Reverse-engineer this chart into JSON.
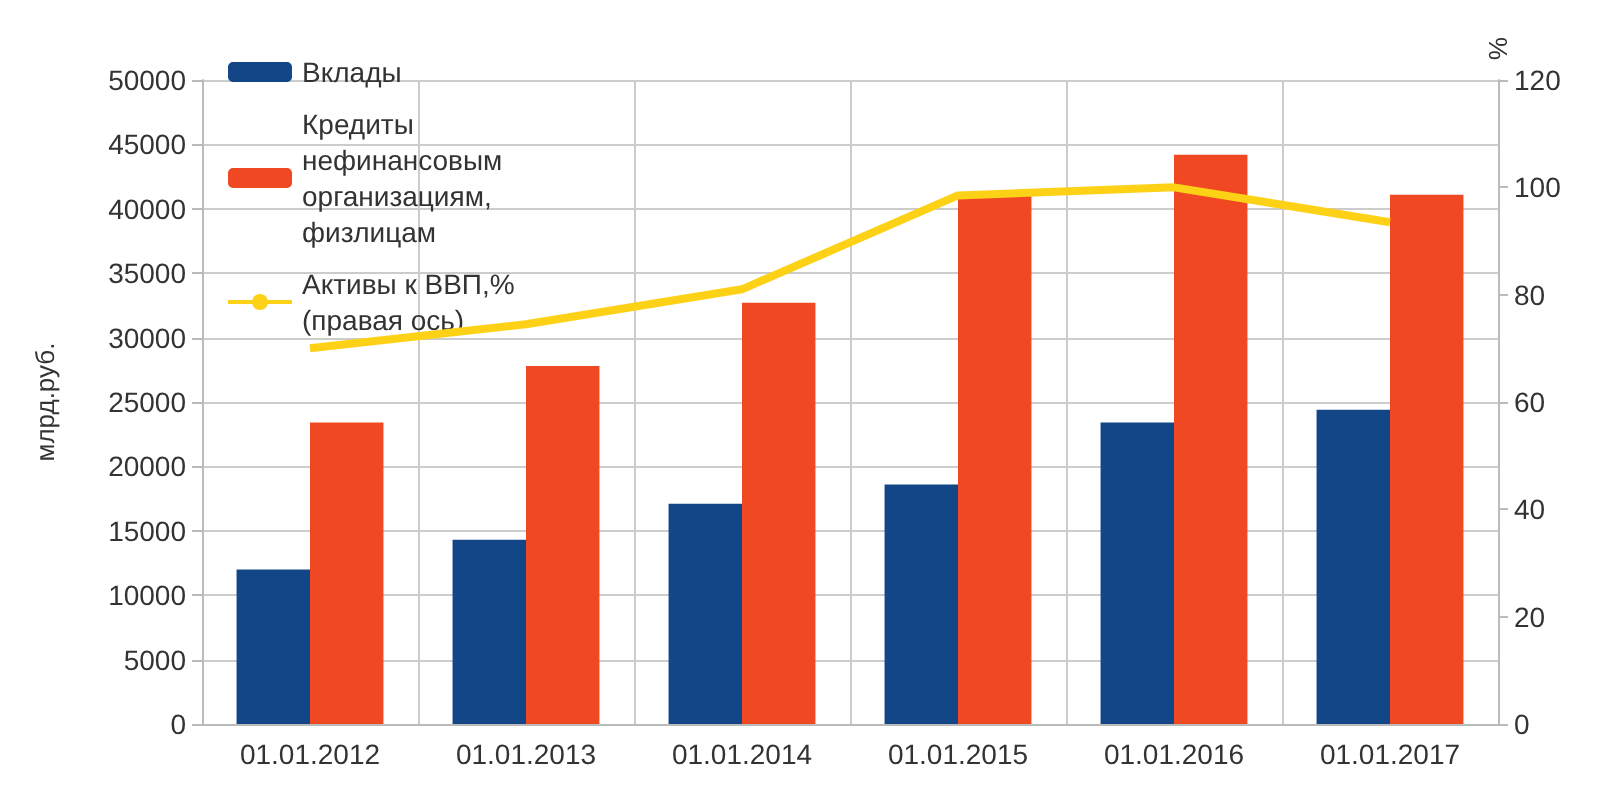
{
  "chart_data": {
    "type": "bar",
    "ylabel": "млрд.руб.",
    "y2label": "%",
    "categories": [
      "01.01.2012",
      "01.01.2013",
      "01.01.2014",
      "01.01.2015",
      "01.01.2016",
      "01.01.2017"
    ],
    "series": [
      {
        "name": "Вклады",
        "color": "#134686",
        "values": [
          12000,
          14300,
          17100,
          18600,
          23400,
          24400
        ]
      },
      {
        "name": "Кредиты нефинансовым организациям, физлицам",
        "color": "#ef4823",
        "values": [
          23400,
          27800,
          32700,
          41000,
          44200,
          41100
        ]
      },
      {
        "name": "Активы к ВВП,% (правая ось)",
        "type": "line",
        "axis": "y2",
        "color": "#fcd116",
        "values": [
          70,
          74.5,
          81,
          98.5,
          100,
          93.5
        ]
      }
    ],
    "ylim": [
      0,
      50000
    ],
    "yticks": [
      0,
      5000,
      10000,
      15000,
      20000,
      25000,
      30000,
      35000,
      40000,
      45000,
      50000
    ],
    "y2lim": [
      0,
      120
    ],
    "y2ticks": [
      0,
      20,
      40,
      60,
      80,
      100,
      120
    ],
    "grid": true,
    "legend": "top left",
    "marker": "none"
  }
}
